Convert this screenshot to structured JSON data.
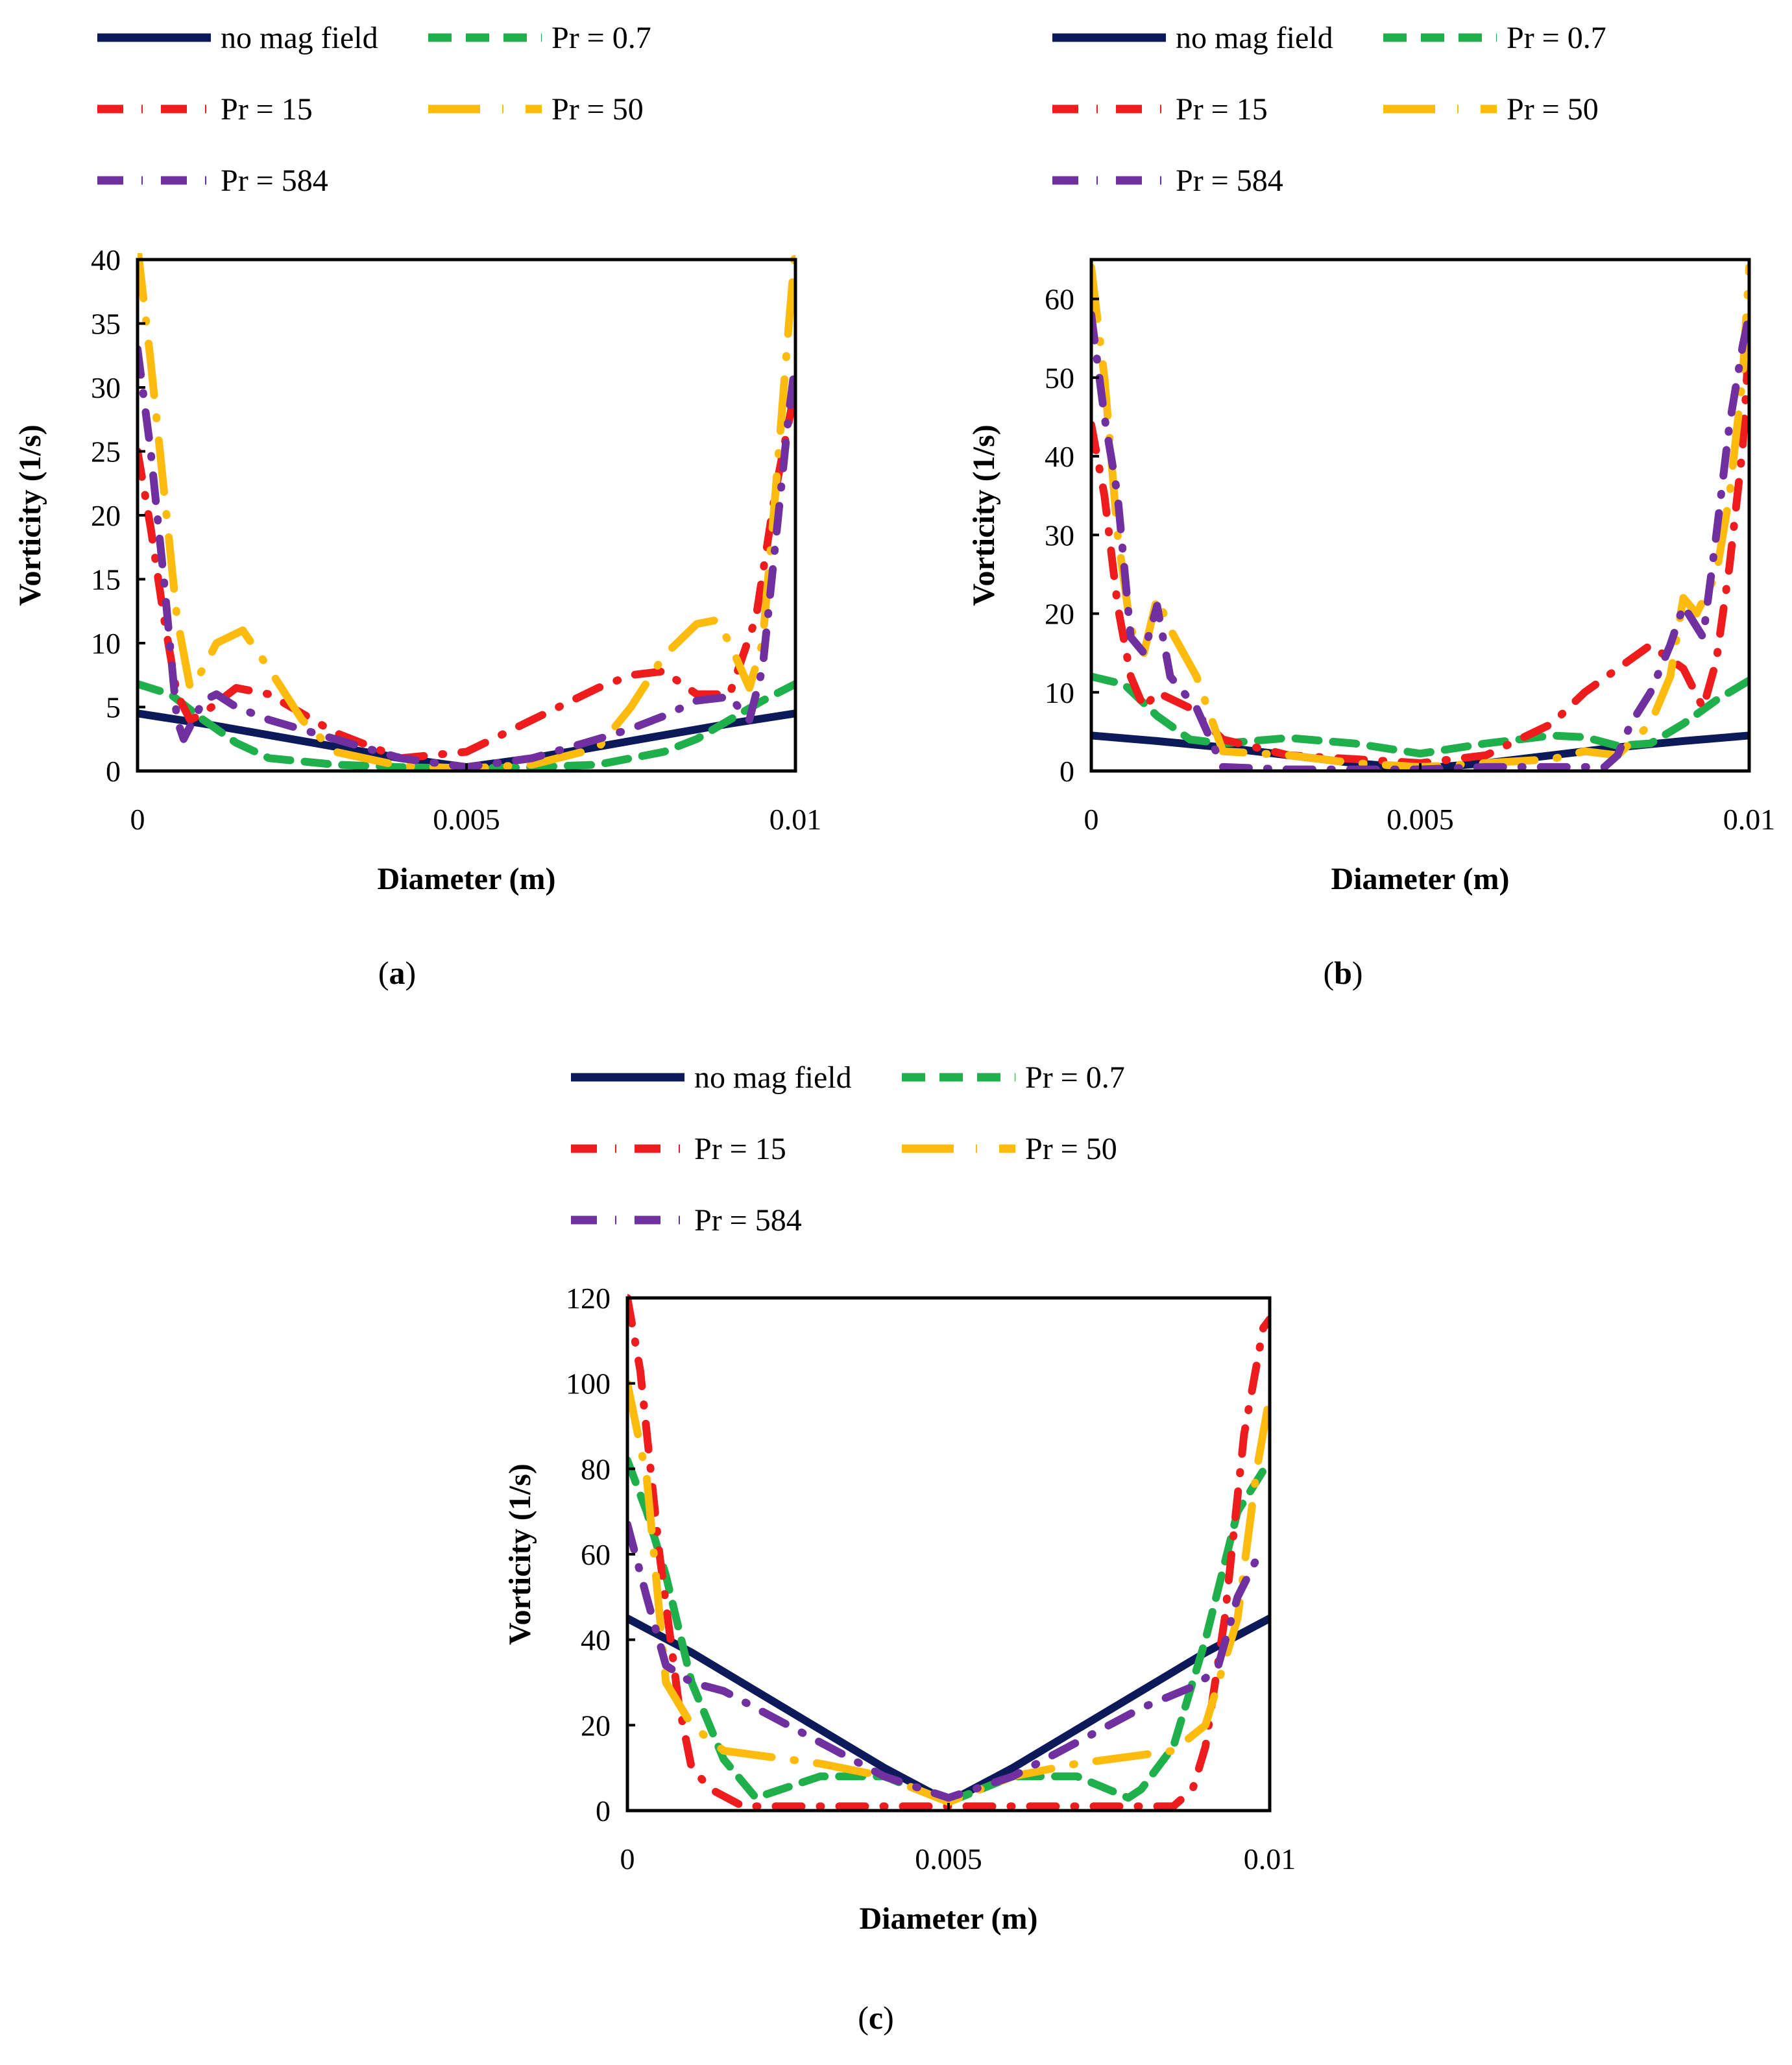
{
  "figure": {
    "captions": [
      "a",
      "b",
      "c"
    ]
  },
  "chart_data": [
    {
      "type": "line",
      "panel": "a",
      "xlabel": "Diameter (m)",
      "ylabel": "Vorticity (1/s)",
      "xlim": [
        0,
        0.01
      ],
      "ylim": [
        0,
        40
      ],
      "xticks": [
        0,
        0.005,
        0.01
      ],
      "xtick_labels": [
        "0",
        "0.005",
        "0.01"
      ],
      "yticks": [
        0,
        5,
        10,
        15,
        20,
        25,
        30,
        35,
        40
      ],
      "ytick_labels": [
        "0",
        "5",
        "10",
        "15",
        "20",
        "25",
        "30",
        "35",
        "40"
      ],
      "legend_position": "top",
      "series": [
        {
          "name": "no mag field",
          "color": "#0c1a5a",
          "style": "solid",
          "x": [
            0,
            0.001,
            0.002,
            0.003,
            0.004,
            0.005,
            0.006,
            0.007,
            0.008,
            0.009,
            0.01
          ],
          "y": [
            4.5,
            3.7,
            2.8,
            1.9,
            1.0,
            0.3,
            1.0,
            1.9,
            2.8,
            3.7,
            4.5
          ]
        },
        {
          "name": "Pr = 0.7",
          "color": "#1faf4b",
          "style": "dash",
          "x": [
            0,
            0.0005,
            0.001,
            0.0015,
            0.002,
            0.003,
            0.004,
            0.005,
            0.006,
            0.007,
            0.008,
            0.0085,
            0.009,
            0.0095,
            0.01
          ],
          "y": [
            6.8,
            6.0,
            4.0,
            2.2,
            1.0,
            0.5,
            0.3,
            0.2,
            0.3,
            0.5,
            1.5,
            2.5,
            4.0,
            5.5,
            6.8
          ]
        },
        {
          "name": "Pr = 15",
          "color": "#ee1c1c",
          "style": "dashdot",
          "x": [
            0,
            0.0002,
            0.0004,
            0.0006,
            0.0008,
            0.001,
            0.0015,
            0.002,
            0.003,
            0.004,
            0.005,
            0.006,
            0.007,
            0.0075,
            0.008,
            0.0085,
            0.009,
            0.0094,
            0.0097,
            0.01
          ],
          "y": [
            25,
            19,
            12,
            6,
            4,
            4.5,
            6.5,
            6.0,
            3.0,
            1.0,
            1.5,
            4.0,
            6.5,
            7.5,
            7.8,
            6.0,
            6.0,
            12,
            22,
            30
          ]
        },
        {
          "name": "Pr = 50",
          "color": "#fcbb0d",
          "style": "longdash",
          "x": [
            0,
            0.0002,
            0.0004,
            0.0006,
            0.0008,
            0.001,
            0.0012,
            0.0016,
            0.002,
            0.0025,
            0.003,
            0.004,
            0.005,
            0.006,
            0.007,
            0.0075,
            0.008,
            0.0085,
            0.0088,
            0.009,
            0.0093,
            0.0095,
            0.0097,
            0.0099,
            0.01
          ],
          "y": [
            41,
            32,
            22,
            12,
            6.5,
            8,
            10,
            11,
            8,
            4,
            1.5,
            0.4,
            0.2,
            0.5,
            1.8,
            5,
            9,
            11.5,
            11.8,
            10,
            6.5,
            10,
            22,
            35,
            41
          ]
        },
        {
          "name": "Pr = 584",
          "color": "#7030a0",
          "style": "dashdot",
          "x": [
            0,
            0.0002,
            0.0004,
            0.0006,
            0.0007,
            0.0008,
            0.001,
            0.0012,
            0.0015,
            0.002,
            0.003,
            0.004,
            0.005,
            0.006,
            0.007,
            0.0075,
            0.008,
            0.0085,
            0.009,
            0.0093,
            0.0095,
            0.0097,
            0.0099,
            0.01
          ],
          "y": [
            33,
            25,
            15,
            4,
            2.5,
            3.5,
            5.5,
            6.0,
            5.0,
            4.0,
            2.5,
            1.0,
            0.3,
            1.0,
            2.5,
            3.3,
            4.3,
            5.5,
            5.8,
            4.0,
            8,
            18,
            28,
            32
          ]
        }
      ]
    },
    {
      "type": "line",
      "panel": "b",
      "xlabel": "Diameter (m)",
      "ylabel": "Vorticity (1/s)",
      "xlim": [
        0,
        0.01
      ],
      "ylim": [
        0,
        65
      ],
      "xticks": [
        0,
        0.005,
        0.01
      ],
      "xtick_labels": [
        "0",
        "0.005",
        "0.01"
      ],
      "yticks": [
        0,
        10,
        20,
        30,
        40,
        50,
        60
      ],
      "ytick_labels": [
        "0",
        "10",
        "20",
        "30",
        "40",
        "50",
        "60"
      ],
      "legend_position": "top",
      "series": [
        {
          "name": "no mag field",
          "color": "#0c1a5a",
          "style": "solid",
          "x": [
            0,
            0.001,
            0.002,
            0.003,
            0.004,
            0.005,
            0.006,
            0.007,
            0.008,
            0.009,
            0.01
          ],
          "y": [
            4.5,
            3.8,
            3.0,
            2.0,
            1.0,
            0.3,
            1.0,
            2.0,
            3.0,
            3.8,
            4.5
          ]
        },
        {
          "name": "Pr = 0.7",
          "color": "#1faf4b",
          "style": "dash",
          "x": [
            0,
            0.0005,
            0.001,
            0.0015,
            0.002,
            0.003,
            0.004,
            0.005,
            0.006,
            0.007,
            0.0075,
            0.008,
            0.0085,
            0.009,
            0.0095,
            0.01
          ],
          "y": [
            12,
            11,
            7,
            4,
            3.5,
            4.2,
            3.5,
            2.2,
            3.5,
            4.5,
            4.3,
            3.2,
            3.5,
            6,
            9,
            11.5
          ]
        },
        {
          "name": "Pr = 15",
          "color": "#ee1c1c",
          "style": "dashdot",
          "x": [
            0,
            0.0002,
            0.0004,
            0.0006,
            0.0008,
            0.001,
            0.0015,
            0.002,
            0.003,
            0.004,
            0.005,
            0.006,
            0.007,
            0.0075,
            0.008,
            0.0085,
            0.009,
            0.0093,
            0.0095,
            0.0097,
            0.0099,
            0.01
          ],
          "y": [
            44,
            35,
            21,
            12,
            8,
            10,
            8,
            4,
            2,
            1.5,
            1.0,
            2.0,
            6,
            10,
            13,
            16,
            13,
            8,
            14,
            26,
            41,
            55
          ]
        },
        {
          "name": "Pr = 50",
          "color": "#fcbb0d",
          "style": "longdash",
          "x": [
            0,
            0.0002,
            0.0004,
            0.0006,
            0.0008,
            0.001,
            0.0012,
            0.0016,
            0.002,
            0.003,
            0.004,
            0.005,
            0.006,
            0.007,
            0.0075,
            0.008,
            0.0085,
            0.0088,
            0.009,
            0.0092,
            0.0095,
            0.0097,
            0.0099,
            0.01
          ],
          "y": [
            64,
            50,
            30,
            18,
            15,
            22,
            18,
            12,
            2.5,
            2.0,
            1.0,
            0.5,
            1.0,
            1.5,
            2.5,
            2.0,
            6,
            12,
            22,
            20,
            25,
            35,
            50,
            64
          ]
        },
        {
          "name": "Pr = 584",
          "color": "#7030a0",
          "style": "dashdot",
          "x": [
            0,
            0.0002,
            0.0004,
            0.0006,
            0.0008,
            0.001,
            0.0012,
            0.0016,
            0.002,
            0.003,
            0.004,
            0.005,
            0.006,
            0.007,
            0.0078,
            0.008,
            0.0082,
            0.0085,
            0.0088,
            0.009,
            0.0093,
            0.0095,
            0.0097,
            0.0099,
            0.01
          ],
          "y": [
            58,
            45,
            35,
            17,
            15,
            21,
            12,
            8,
            0.5,
            0.2,
            0.2,
            0.2,
            0.5,
            0.5,
            0.5,
            2,
            6,
            10,
            16,
            21,
            17,
            30,
            44,
            54,
            58
          ]
        }
      ]
    },
    {
      "type": "line",
      "panel": "c",
      "xlabel": "Diameter (m)",
      "ylabel": "Vorticity (1/s)",
      "xlim": [
        0,
        0.01
      ],
      "ylim": [
        0,
        120
      ],
      "xticks": [
        0,
        0.005,
        0.01
      ],
      "xtick_labels": [
        "0",
        "0.005",
        "0.01"
      ],
      "yticks": [
        0,
        20,
        40,
        60,
        80,
        100,
        120
      ],
      "ytick_labels": [
        "0",
        "20",
        "40",
        "60",
        "80",
        "100",
        "120"
      ],
      "legend_position": "top",
      "series": [
        {
          "name": "no mag field",
          "color": "#0c1a5a",
          "style": "solid",
          "x": [
            0,
            0.001,
            0.002,
            0.003,
            0.004,
            0.005,
            0.006,
            0.007,
            0.008,
            0.009,
            0.01
          ],
          "y": [
            45,
            37,
            28,
            19,
            10,
            2,
            10,
            19,
            28,
            37,
            45
          ]
        },
        {
          "name": "Pr = 0.7",
          "color": "#1faf4b",
          "style": "dash",
          "x": [
            0,
            0.0003,
            0.0006,
            0.001,
            0.0015,
            0.002,
            0.003,
            0.004,
            0.005,
            0.006,
            0.007,
            0.0078,
            0.008,
            0.0085,
            0.009,
            0.0095,
            0.01
          ],
          "y": [
            82,
            70,
            55,
            30,
            12,
            3,
            8,
            8,
            2,
            8,
            8,
            3,
            5,
            15,
            40,
            70,
            82
          ]
        },
        {
          "name": "Pr = 15",
          "color": "#ee1c1c",
          "style": "dashdot",
          "x": [
            0,
            0.0002,
            0.0005,
            0.0008,
            0.001,
            0.0013,
            0.0018,
            0.003,
            0.004,
            0.005,
            0.006,
            0.007,
            0.008,
            0.0085,
            0.0088,
            0.009,
            0.0093,
            0.0096,
            0.0099,
            0.01
          ],
          "y": [
            120,
            103,
            60,
            25,
            10,
            5,
            1,
            1,
            1,
            1,
            1,
            1,
            1,
            1,
            5,
            15,
            45,
            88,
            113,
            115
          ]
        },
        {
          "name": "Pr = 50",
          "color": "#fcbb0d",
          "style": "longdash",
          "x": [
            0,
            0.0003,
            0.0006,
            0.001,
            0.0015,
            0.002,
            0.003,
            0.004,
            0.005,
            0.006,
            0.007,
            0.008,
            0.0085,
            0.009,
            0.0095,
            0.0098,
            0.01
          ],
          "y": [
            100,
            78,
            30,
            20,
            14,
            13,
            11,
            8,
            2,
            8,
            11,
            13,
            14,
            20,
            45,
            80,
            97
          ]
        },
        {
          "name": "Pr = 584",
          "color": "#7030a0",
          "style": "dashdot",
          "x": [
            0,
            0.0003,
            0.0006,
            0.001,
            0.0015,
            0.002,
            0.003,
            0.004,
            0.005,
            0.006,
            0.007,
            0.008,
            0.0088,
            0.009,
            0.0092,
            0.0095,
            0.0098,
            0.01
          ],
          "y": [
            67,
            50,
            34,
            30,
            28,
            24,
            16,
            8,
            3,
            8,
            16,
            24,
            29,
            31,
            34,
            50,
            59,
            60
          ]
        }
      ]
    }
  ]
}
